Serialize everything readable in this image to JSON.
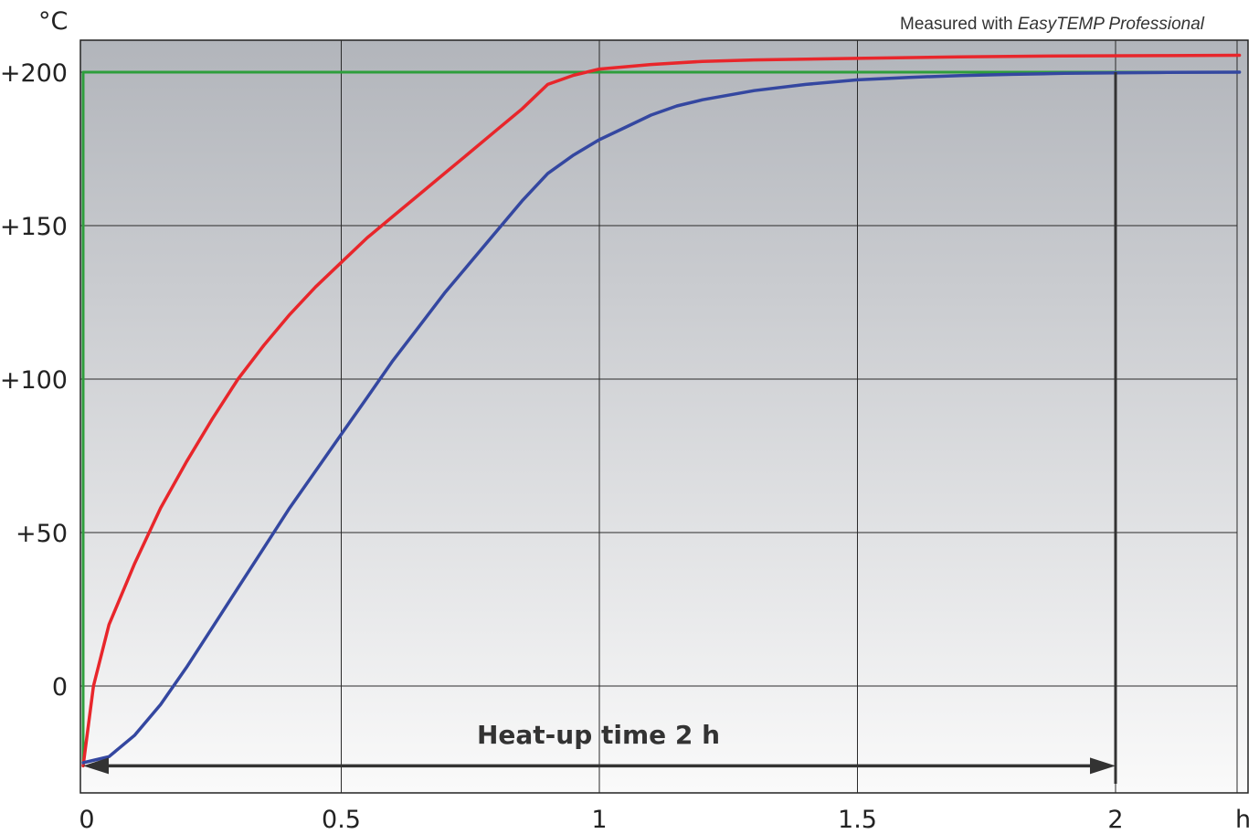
{
  "chart_data": {
    "type": "line",
    "subtitle_prefix": "Measured with",
    "subtitle_emphasis": "EasyTEMP Professional",
    "y_unit": "°C",
    "x_unit": "h",
    "x_ticks": [
      "0",
      "0.5",
      "1",
      "1.5",
      "2"
    ],
    "x_tick_values": [
      0,
      0.5,
      1,
      1.5,
      2
    ],
    "y_ticks": [
      "0",
      "+50",
      "+100",
      "+150",
      "+200"
    ],
    "y_tick_values": [
      0,
      50,
      100,
      150,
      200
    ],
    "xlim": [
      0,
      2.24
    ],
    "ylim": [
      -27,
      210
    ],
    "grid": true,
    "colors": {
      "setpoint": "#2e9e3c",
      "bath": "#e8262b",
      "sample": "#3447a0",
      "marker": "#333333",
      "bg_top": "#b2b5bb",
      "bg_bottom": "#fafafa"
    },
    "series": [
      {
        "key": "setpoint",
        "x": [
          0,
          0,
          2.24
        ],
        "y": [
          -25,
          200,
          200
        ]
      },
      {
        "key": "bath",
        "x": [
          0,
          0.02,
          0.05,
          0.1,
          0.15,
          0.2,
          0.25,
          0.3,
          0.35,
          0.4,
          0.45,
          0.5,
          0.55,
          0.6,
          0.65,
          0.7,
          0.75,
          0.8,
          0.85,
          0.9,
          0.95,
          1.0,
          1.1,
          1.2,
          1.3,
          1.5,
          1.7,
          1.9,
          2.1,
          2.24
        ],
        "y": [
          -26,
          0,
          20,
          40,
          58,
          73,
          87,
          100,
          111,
          121,
          130,
          138,
          146,
          153,
          160,
          167,
          174,
          181,
          188,
          196,
          199,
          201,
          202.5,
          203.5,
          204,
          204.5,
          205,
          205.3,
          205.4,
          205.5
        ]
      },
      {
        "key": "sample",
        "x": [
          0,
          0.05,
          0.1,
          0.15,
          0.2,
          0.25,
          0.3,
          0.35,
          0.4,
          0.45,
          0.5,
          0.55,
          0.6,
          0.65,
          0.7,
          0.75,
          0.8,
          0.85,
          0.9,
          0.95,
          1.0,
          1.05,
          1.1,
          1.15,
          1.2,
          1.3,
          1.4,
          1.5,
          1.6,
          1.7,
          1.8,
          1.9,
          2.0,
          2.1,
          2.24
        ],
        "y": [
          -25,
          -23,
          -16,
          -6,
          6,
          19,
          32,
          45,
          58,
          70,
          82,
          94,
          106,
          117,
          128,
          138,
          148,
          158,
          167,
          173,
          178,
          182,
          186,
          189,
          191,
          194,
          196,
          197.5,
          198.3,
          198.9,
          199.3,
          199.6,
          199.8,
          199.9,
          200
        ]
      }
    ],
    "annotation": {
      "label": "Heat-up time 2 h",
      "x_start": 0,
      "x_end": 2,
      "y": -26
    }
  }
}
